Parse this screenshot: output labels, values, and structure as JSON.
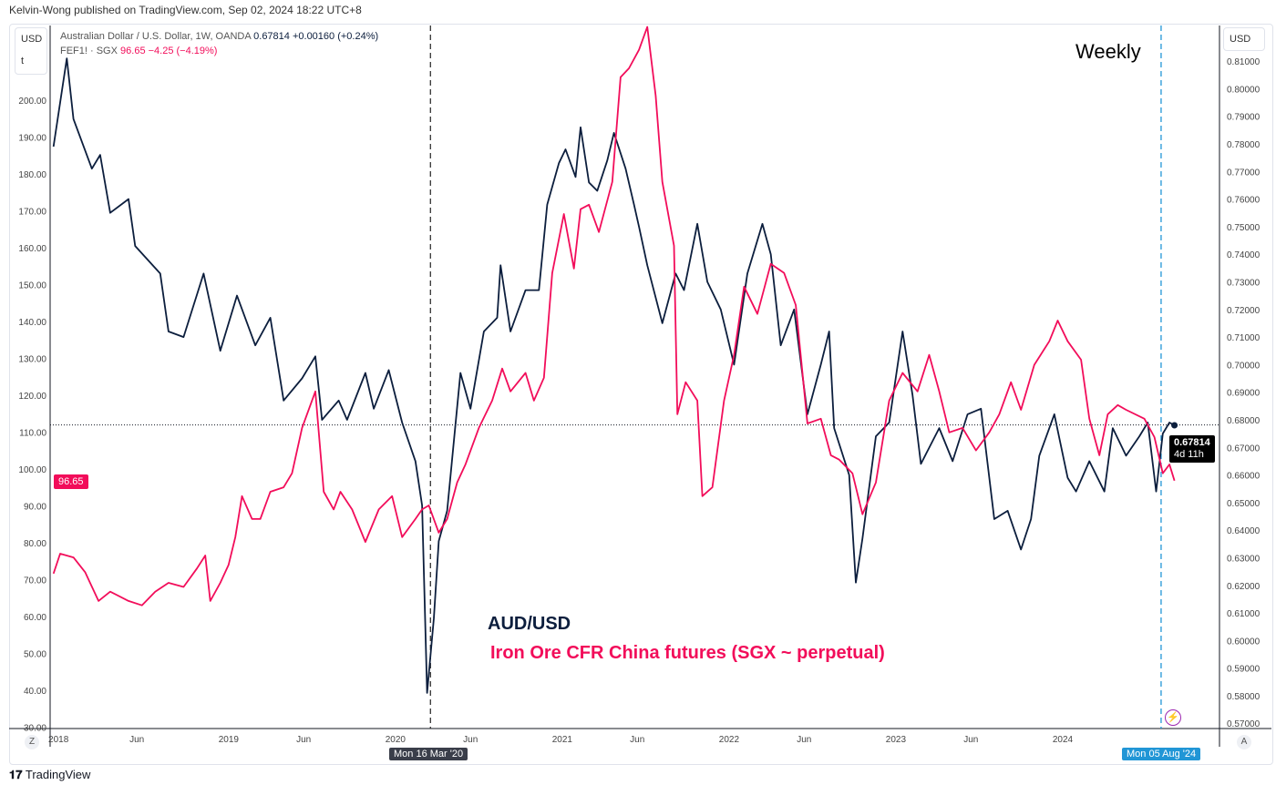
{
  "header": {
    "published": "Kelvin-Wong published on TradingView.com, Sep 02, 2024 18:22 UTC+8"
  },
  "legend": {
    "aud_name": "Australian Dollar / U.S. Dollar, 1W, OANDA",
    "aud_price": "0.67814",
    "aud_change": "+0.00160 (+0.24%)",
    "fef_name": "FEF1! · SGX",
    "fef_price": "96.65",
    "fef_change": "−4.25 (−4.19%)"
  },
  "left_unit": {
    "currency": "USD",
    "t": "t"
  },
  "right_unit": "USD",
  "timeframe_label": "Weekly",
  "annotations": {
    "aud": "AUD/USD",
    "iron": "Iron Ore CFR China futures (SGX ~ perpetual)"
  },
  "price_tags": {
    "aud_price": "0.67814",
    "aud_countdown": "4d 11h",
    "fef_price": "96.65"
  },
  "crosshair_tags": {
    "covid": "Mon 16 Mar '20",
    "aug": "Mon 05 Aug '24"
  },
  "bottom_buttons": {
    "left": "Z",
    "right": "A"
  },
  "footer": {
    "logo": "TradingView"
  },
  "colors": {
    "aud": "#0c1e3d",
    "iron": "#f20d5a",
    "aug_line": "#2196d6",
    "covid_line": "#333333"
  },
  "chart_data": {
    "type": "line",
    "title": "Australian Dollar / U.S. Dollar vs FEF1! (Iron Ore), Weekly",
    "x_ticks": [
      {
        "x": 2017.98,
        "label": "2018"
      },
      {
        "x": 2018.45,
        "label": "Jun"
      },
      {
        "x": 2019.0,
        "label": "2019"
      },
      {
        "x": 2019.45,
        "label": "Jun"
      },
      {
        "x": 2020.0,
        "label": "2020"
      },
      {
        "x": 2020.45,
        "label": "Jun"
      },
      {
        "x": 2021.0,
        "label": "2021"
      },
      {
        "x": 2021.45,
        "label": "Jun"
      },
      {
        "x": 2022.0,
        "label": "2022"
      },
      {
        "x": 2022.45,
        "label": "Jun"
      },
      {
        "x": 2023.0,
        "label": "2023"
      },
      {
        "x": 2023.45,
        "label": "Jun"
      },
      {
        "x": 2024.0,
        "label": "2024"
      }
    ],
    "xlim": [
      2017.93,
      2024.94
    ],
    "left_axis": {
      "ylim": [
        29.6,
        220.2
      ],
      "ticks": [
        30,
        40,
        50,
        60,
        70,
        80,
        90,
        100,
        110,
        120,
        130,
        140,
        150,
        160,
        170,
        180,
        190,
        200
      ],
      "labels": [
        "30.00",
        "40.00",
        "50.00",
        "60.00",
        "70.00",
        "80.00",
        "90.00",
        "100.00",
        "110.00",
        "120.00",
        "130.00",
        "140.00",
        "150.00",
        "160.00",
        "170.00",
        "180.00",
        "190.00",
        "200.00"
      ]
    },
    "right_axis": {
      "ylim": [
        0.5681,
        0.8229
      ],
      "ticks": [
        0.57,
        0.58,
        0.59,
        0.6,
        0.61,
        0.62,
        0.63,
        0.64,
        0.65,
        0.66,
        0.67,
        0.68,
        0.69,
        0.7,
        0.71,
        0.72,
        0.73,
        0.74,
        0.75,
        0.76,
        0.77,
        0.78,
        0.79,
        0.8,
        0.81
      ],
      "labels": [
        "0.57000",
        "0.58000",
        "0.59000",
        "0.60000",
        "0.61000",
        "0.62000",
        "0.63000",
        "0.64000",
        "0.65000",
        "0.66000",
        "0.67000",
        "0.68000",
        "0.69000",
        "0.70000",
        "0.71000",
        "0.72000",
        "0.73000",
        "0.74000",
        "0.75000",
        "0.76000",
        "0.77000",
        "0.78000",
        "0.79000",
        "0.80000",
        "0.81000"
      ]
    },
    "vlines": [
      {
        "x": 2020.21,
        "style": "covid"
      },
      {
        "x": 2024.59,
        "style": "aug"
      }
    ],
    "hline_value": 0.67814,
    "series": [
      {
        "name": "AUD/USD",
        "axis": "right",
        "x": [
          2017.95,
          2018.03,
          2018.07,
          2018.18,
          2018.23,
          2018.29,
          2018.4,
          2018.44,
          2018.59,
          2018.64,
          2018.73,
          2018.85,
          2018.95,
          2019.05,
          2019.16,
          2019.25,
          2019.33,
          2019.44,
          2019.52,
          2019.56,
          2019.66,
          2019.71,
          2019.82,
          2019.87,
          2019.96,
          2020.04,
          2020.12,
          2020.16,
          2020.19,
          2020.23,
          2020.26,
          2020.31,
          2020.39,
          2020.45,
          2020.53,
          2020.61,
          2020.63,
          2020.69,
          2020.78,
          2020.86,
          2020.91,
          2020.98,
          2021.02,
          2021.08,
          2021.11,
          2021.16,
          2021.21,
          2021.27,
          2021.31,
          2021.38,
          2021.43,
          2021.46,
          2021.51,
          2021.6,
          2021.68,
          2021.73,
          2021.81,
          2021.87,
          2021.95,
          2022.03,
          2022.11,
          2022.2,
          2022.25,
          2022.31,
          2022.39,
          2022.47,
          2022.55,
          2022.6,
          2022.63,
          2022.72,
          2022.76,
          2022.8,
          2022.88,
          2022.96,
          2023.04,
          2023.1,
          2023.15,
          2023.26,
          2023.34,
          2023.43,
          2023.51,
          2023.59,
          2023.67,
          2023.75,
          2023.81,
          2023.86,
          2023.95,
          2024.03,
          2024.08,
          2024.16,
          2024.25,
          2024.3,
          2024.38,
          2024.46,
          2024.51,
          2024.56,
          2024.6,
          2024.64,
          2024.67
        ],
        "values": [
          0.779,
          0.811,
          0.789,
          0.771,
          0.776,
          0.755,
          0.76,
          0.743,
          0.733,
          0.712,
          0.71,
          0.733,
          0.705,
          0.725,
          0.707,
          0.717,
          0.687,
          0.695,
          0.703,
          0.68,
          0.687,
          0.68,
          0.697,
          0.684,
          0.698,
          0.679,
          0.665,
          0.649,
          0.581,
          0.608,
          0.636,
          0.647,
          0.697,
          0.684,
          0.712,
          0.717,
          0.736,
          0.712,
          0.727,
          0.727,
          0.758,
          0.773,
          0.778,
          0.768,
          0.786,
          0.766,
          0.763,
          0.774,
          0.784,
          0.771,
          0.758,
          0.75,
          0.736,
          0.715,
          0.733,
          0.727,
          0.751,
          0.73,
          0.72,
          0.7,
          0.733,
          0.751,
          0.74,
          0.707,
          0.72,
          0.682,
          0.7,
          0.712,
          0.677,
          0.66,
          0.621,
          0.637,
          0.674,
          0.679,
          0.712,
          0.689,
          0.664,
          0.677,
          0.665,
          0.682,
          0.684,
          0.644,
          0.647,
          0.633,
          0.644,
          0.667,
          0.682,
          0.659,
          0.654,
          0.665,
          0.654,
          0.677,
          0.667,
          0.674,
          0.679,
          0.654,
          0.675,
          0.679,
          0.678
        ]
      },
      {
        "name": "Iron Ore CFR China futures (SGX ~ perpetual)",
        "axis": "left",
        "x": [
          2017.95,
          2017.99,
          2018.07,
          2018.14,
          2018.22,
          2018.29,
          2018.4,
          2018.48,
          2018.56,
          2018.64,
          2018.73,
          2018.81,
          2018.86,
          2018.89,
          2018.95,
          2019.0,
          2019.04,
          2019.08,
          2019.14,
          2019.19,
          2019.25,
          2019.33,
          2019.38,
          2019.44,
          2019.52,
          2019.57,
          2019.63,
          2019.67,
          2019.74,
          2019.82,
          2019.9,
          2019.98,
          2020.04,
          2020.12,
          2020.16,
          2020.2,
          2020.26,
          2020.31,
          2020.37,
          2020.42,
          2020.5,
          2020.58,
          2020.64,
          2020.69,
          2020.78,
          2020.83,
          2020.89,
          2020.94,
          2021.01,
          2021.07,
          2021.11,
          2021.16,
          2021.22,
          2021.3,
          2021.35,
          2021.4,
          2021.46,
          2021.51,
          2021.56,
          2021.6,
          2021.67,
          2021.69,
          2021.74,
          2021.81,
          2021.84,
          2021.9,
          2021.97,
          2022.03,
          2022.09,
          2022.17,
          2022.25,
          2022.33,
          2022.4,
          2022.47,
          2022.55,
          2022.61,
          2022.66,
          2022.74,
          2022.8,
          2022.88,
          2022.96,
          2023.04,
          2023.13,
          2023.2,
          2023.26,
          2023.32,
          2023.4,
          2023.48,
          2023.56,
          2023.62,
          2023.69,
          2023.75,
          2023.83,
          2023.92,
          2023.97,
          2024.03,
          2024.11,
          2024.16,
          2024.22,
          2024.27,
          2024.33,
          2024.38,
          2024.49,
          2024.55,
          2024.6,
          2024.64,
          2024.67
        ],
        "values": [
          71.6,
          77,
          76,
          72,
          64.2,
          66.7,
          64.2,
          63,
          66.7,
          69.1,
          68,
          73,
          76.5,
          64.2,
          69.1,
          74,
          81.5,
          92.6,
          86.4,
          86.4,
          93.8,
          95,
          98.8,
          111.1,
          121,
          93.8,
          89,
          93.8,
          89,
          80.2,
          89,
          92.6,
          81.5,
          86.4,
          89,
          90.1,
          82.7,
          86.4,
          96.3,
          101.2,
          111.1,
          118.5,
          127.2,
          121,
          126,
          118.5,
          124.7,
          153.1,
          169.1,
          154.3,
          170.4,
          171.6,
          164.2,
          177.8,
          206.2,
          208.6,
          213.6,
          219.8,
          201.2,
          177.8,
          160.5,
          114.8,
          123.5,
          118.5,
          92.6,
          95,
          118.5,
          130.9,
          149.4,
          142,
          155.6,
          153.1,
          144.4,
          112.3,
          113.6,
          103.7,
          102.5,
          98.8,
          87.7,
          96.3,
          118.5,
          126,
          121,
          130.9,
          121,
          109.9,
          111.1,
          105,
          109.9,
          114.8,
          123.5,
          116,
          128.2,
          134.6,
          140.2,
          134.6,
          129.6,
          113.6,
          103.7,
          114.8,
          117.3,
          116,
          113.6,
          108.6,
          98.8,
          101.2,
          96.8
        ]
      }
    ]
  }
}
